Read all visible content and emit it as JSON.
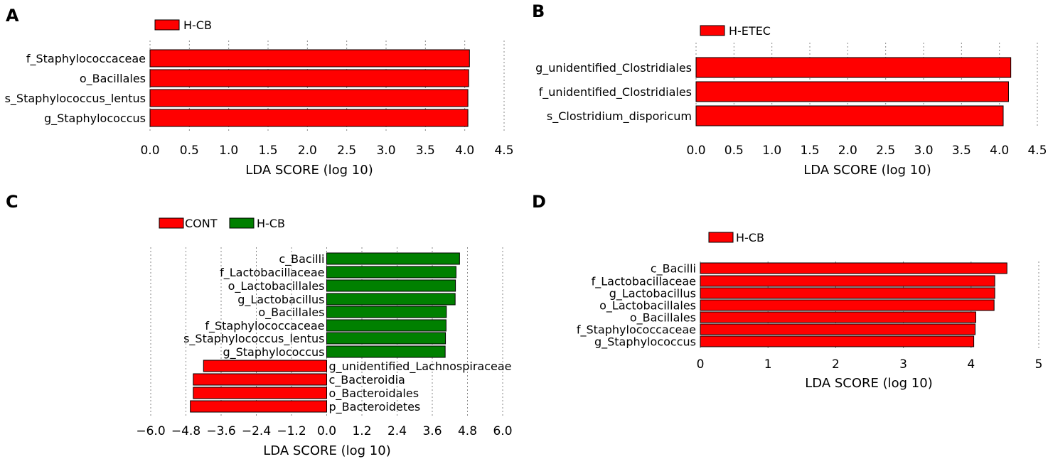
{
  "chart_data": [
    {
      "panel": "A",
      "type": "bar",
      "orientation": "horizontal",
      "legend": [
        {
          "name": "H-CB",
          "color": "#ff0000"
        }
      ],
      "categories": [
        "f_Staphylococcaceae",
        "o_Bacillales",
        "s_Staphylococcus_lentus",
        "g_Staphylococcus"
      ],
      "values": [
        4.06,
        4.05,
        4.04,
        4.04
      ],
      "colors": [
        "#ff0000",
        "#ff0000",
        "#ff0000",
        "#ff0000"
      ],
      "xlabel": "LDA SCORE (log 10)",
      "xlim": [
        0,
        4.5
      ],
      "ticks": [
        0,
        0.5,
        1,
        1.5,
        2,
        2.5,
        3,
        3.5,
        4,
        4.5
      ],
      "tick_labels": [
        "0.0",
        "0.5",
        "1.0",
        "1.5",
        "2.0",
        "2.5",
        "3.0",
        "3.5",
        "4.0",
        "4.5"
      ],
      "grid": true
    },
    {
      "panel": "B",
      "type": "bar",
      "orientation": "horizontal",
      "legend": [
        {
          "name": "H-ETEC",
          "color": "#ff0000"
        }
      ],
      "categories": [
        "g_unidentified_Clostridiales",
        "f_unidentified_Clostridiales",
        "s_Clostridium_disporicum"
      ],
      "values": [
        4.15,
        4.12,
        4.05
      ],
      "colors": [
        "#ff0000",
        "#ff0000",
        "#ff0000"
      ],
      "xlabel": "LDA SCORE (log 10)",
      "xlim": [
        0,
        4.5
      ],
      "ticks": [
        0,
        0.5,
        1,
        1.5,
        2,
        2.5,
        3,
        3.5,
        4,
        4.5
      ],
      "tick_labels": [
        "0.0",
        "0.5",
        "1.0",
        "1.5",
        "2.0",
        "2.5",
        "3.0",
        "3.5",
        "4.0",
        "4.5"
      ],
      "grid": true
    },
    {
      "panel": "C",
      "type": "bar",
      "orientation": "horizontal",
      "legend": [
        {
          "name": "CONT",
          "color": "#ff0000"
        },
        {
          "name": "H-CB",
          "color": "#008000"
        }
      ],
      "categories": [
        "c_Bacilli",
        "f_Lactobacillaceae",
        "o_Lactobacillales",
        "g_Lactobacillus",
        "o_Bacillales",
        "f_Staphylococcaceae",
        "s_Staphylococcus_lentus",
        "g_Staphylococcus",
        "g_unidentified_Lachnospiraceae",
        "c_Bacteroidia",
        "o_Bacteroidales",
        "p_Bacteroidetes"
      ],
      "values": [
        4.53,
        4.41,
        4.39,
        4.38,
        4.08,
        4.07,
        4.05,
        4.04,
        -4.2,
        -4.55,
        -4.55,
        -4.65
      ],
      "colors": [
        "#008000",
        "#008000",
        "#008000",
        "#008000",
        "#008000",
        "#008000",
        "#008000",
        "#008000",
        "#ff0000",
        "#ff0000",
        "#ff0000",
        "#ff0000"
      ],
      "xlabel": "LDA SCORE (log 10)",
      "xlim": [
        -6.0,
        6.0
      ],
      "ticks": [
        -6.0,
        -4.8,
        -3.6,
        -2.4,
        -1.2,
        0.0,
        1.2,
        2.4,
        3.6,
        4.8,
        6.0
      ],
      "tick_labels": [
        "−6.0",
        "−4.8",
        "−3.6",
        "−2.4",
        "−1.2",
        "0.0",
        "1.2",
        "2.4",
        "3.6",
        "4.8",
        "6.0"
      ],
      "grid": true
    },
    {
      "panel": "D",
      "type": "bar",
      "orientation": "horizontal",
      "legend": [
        {
          "name": "H-CB",
          "color": "#ff0000"
        }
      ],
      "categories": [
        "c_Bacilli",
        "f_Lactobacillaceae",
        "g_Lactobacillus",
        "o_Lactobacillales",
        "o_Bacillales",
        "f_Staphylococcaceae",
        "g_Staphylococcus"
      ],
      "values": [
        4.53,
        4.35,
        4.35,
        4.34,
        4.07,
        4.06,
        4.04
      ],
      "colors": [
        "#ff0000",
        "#ff0000",
        "#ff0000",
        "#ff0000",
        "#ff0000",
        "#ff0000",
        "#ff0000"
      ],
      "xlabel": "LDA SCORE (log 10)",
      "xlim": [
        0,
        5
      ],
      "ticks": [
        0,
        1,
        2,
        3,
        4,
        5
      ],
      "tick_labels": [
        "0",
        "1",
        "2",
        "3",
        "4",
        "5"
      ],
      "grid": true
    }
  ]
}
